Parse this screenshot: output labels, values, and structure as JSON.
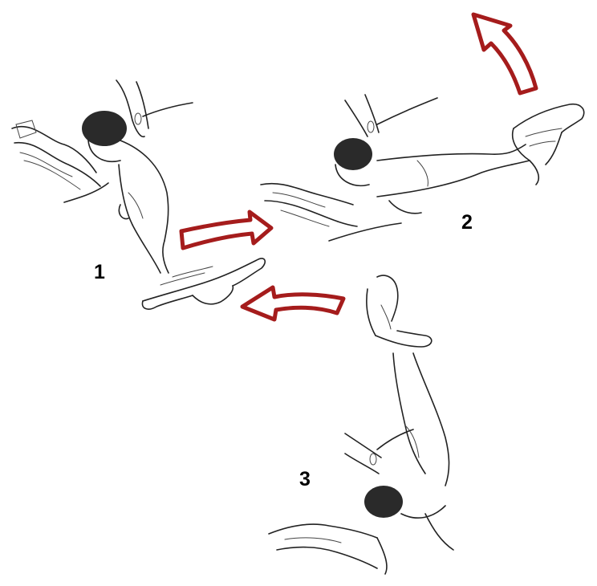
{
  "steps": [
    {
      "label": "1"
    },
    {
      "label": "2"
    },
    {
      "label": "3"
    }
  ],
  "colors": {
    "arrow": "#a51c1c",
    "line": "#222222",
    "background": "#ffffff"
  }
}
